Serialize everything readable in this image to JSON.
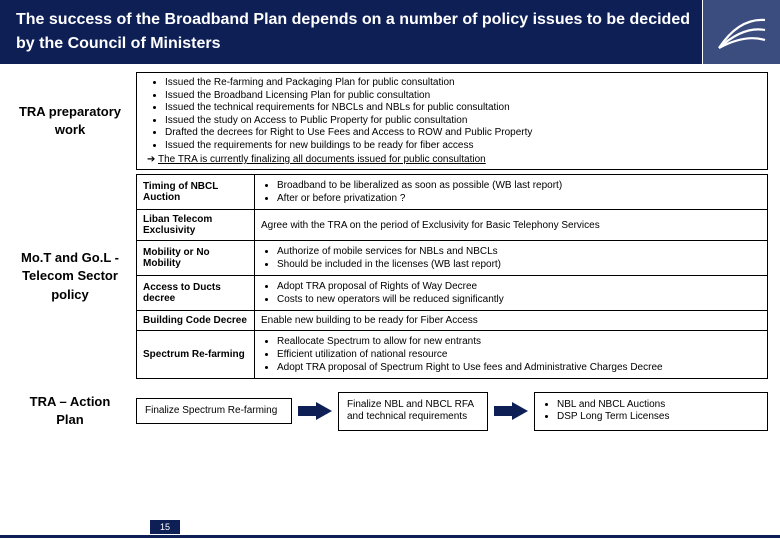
{
  "header": {
    "title": "The success of the Broadband Plan depends on a number of policy issues to be decided by the Council of Ministers"
  },
  "prep": {
    "label": "TRA preparatory work",
    "bullets": [
      "Issued the Re-farming and Packaging Plan for public consultation",
      "Issued the Broadband Licensing Plan for public consultation",
      "Issued the technical requirements for NBCLs and NBLs for public consultation",
      "Issued the study on Access to Public Property for public consultation",
      "Drafted the decrees for Right to Use Fees and Access to ROW and Public Property",
      "Issued the requirements for new buildings to be ready for fiber access"
    ],
    "summary_prefix": "➔ ",
    "summary": "The TRA is currently finalizing all documents issued for public consultation"
  },
  "policy": {
    "label": "Mo.T and Go.L - Telecom Sector policy",
    "rows": [
      {
        "cat": "Timing of NBCL Auction",
        "items": [
          "Broadband to be liberalized as soon as possible (WB last report)",
          "After or before privatization ?"
        ]
      },
      {
        "cat": "Liban Telecom Exclusivity",
        "text": "Agree with the TRA on the period of Exclusivity for Basic Telephony Services"
      },
      {
        "cat": "Mobility or No Mobility",
        "items": [
          "Authorize of mobile services for NBLs and NBCLs",
          "Should be included in the licenses (WB last report)"
        ]
      },
      {
        "cat": "Access to Ducts decree",
        "items": [
          "Adopt TRA proposal of Rights of Way Decree",
          "Costs to new operators will be reduced significantly"
        ]
      },
      {
        "cat": "Building Code Decree",
        "text": "Enable new building to be ready for Fiber Access"
      },
      {
        "cat": "Spectrum Re-farming",
        "items": [
          "Reallocate Spectrum to allow for new entrants",
          "Efficient utilization of national resource",
          "Adopt TRA proposal of Spectrum Right to Use fees and Administrative Charges Decree"
        ]
      }
    ]
  },
  "action": {
    "label": "TRA – Action Plan",
    "box1": "Finalize Spectrum Re-farming",
    "box2": "Finalize NBL and NBCL RFA and technical requirements",
    "box3": [
      "NBL and NBCL Auctions",
      "DSP Long Term Licenses"
    ],
    "arrow_color": "#0e1f56"
  },
  "slide_number": "15"
}
